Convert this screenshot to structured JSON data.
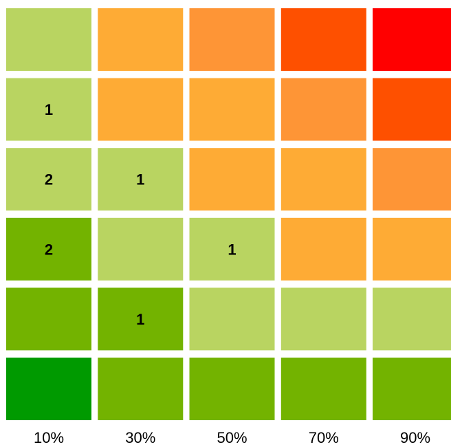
{
  "chart_data": {
    "type": "heatmap",
    "x_categories": [
      "10%",
      "30%",
      "50%",
      "70%",
      "90%"
    ],
    "rows": [
      {
        "colors": [
          "#b9d461",
          "#feab35",
          "#fe9536",
          "#fe5000",
          "#ff0000"
        ],
        "labels": [
          "",
          "",
          "",
          "",
          ""
        ]
      },
      {
        "colors": [
          "#b9d461",
          "#feab35",
          "#feab35",
          "#fe9536",
          "#fe5000"
        ],
        "labels": [
          "1",
          "",
          "",
          "",
          ""
        ]
      },
      {
        "colors": [
          "#b9d461",
          "#b9d461",
          "#feab35",
          "#feab35",
          "#fe9536"
        ],
        "labels": [
          "2",
          "1",
          "",
          "",
          ""
        ]
      },
      {
        "colors": [
          "#73b300",
          "#b9d461",
          "#b9d461",
          "#feab35",
          "#feab35"
        ],
        "labels": [
          "2",
          "",
          "1",
          "",
          ""
        ]
      },
      {
        "colors": [
          "#73b300",
          "#73b300",
          "#b9d461",
          "#b9d461",
          "#b9d461"
        ],
        "labels": [
          "",
          "1",
          "",
          "",
          ""
        ]
      },
      {
        "colors": [
          "#009a00",
          "#73b300",
          "#73b300",
          "#73b300",
          "#73b300"
        ],
        "labels": [
          "",
          "",
          "",
          "",
          ""
        ]
      }
    ]
  }
}
